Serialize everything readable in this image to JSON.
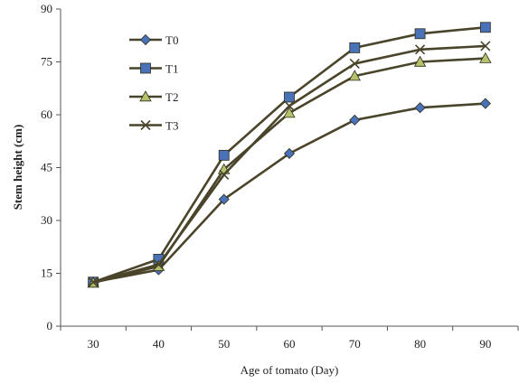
{
  "chart_data": {
    "type": "line",
    "title": "",
    "xlabel": "Age of tomato  (Day)",
    "ylabel": "Stem height (cm)",
    "x": [
      30,
      40,
      50,
      60,
      70,
      80,
      90
    ],
    "xlim": [
      25,
      95
    ],
    "ylim": [
      0,
      90
    ],
    "yticks": [
      0,
      15,
      30,
      45,
      60,
      75,
      90
    ],
    "xtick_labels": [
      "30",
      "40",
      "50",
      "60",
      "70",
      "80",
      "90"
    ],
    "ytick_labels": [
      "0",
      "15",
      "30",
      "45",
      "60",
      "75",
      "90"
    ],
    "grid": false,
    "legend_position": "top-left",
    "series": [
      {
        "name": "T0",
        "marker": "diamond",
        "color": "#4a72b8",
        "line_color": "#4a452a",
        "values": [
          12.5,
          16.0,
          36.0,
          49.0,
          58.5,
          62.0,
          63.2
        ]
      },
      {
        "name": "T1",
        "marker": "square",
        "color": "#4a72b8",
        "line_color": "#4a452a",
        "values": [
          12.5,
          19.0,
          48.5,
          65.0,
          79.0,
          83.0,
          84.8
        ]
      },
      {
        "name": "T2",
        "marker": "triangle",
        "color": "#b5c26b",
        "line_color": "#4a452a",
        "values": [
          12.3,
          17.0,
          44.5,
          60.5,
          71.0,
          75.0,
          76.0
        ]
      },
      {
        "name": "T3",
        "marker": "x",
        "color": "#4a452a",
        "line_color": "#4a452a",
        "values": [
          12.5,
          17.5,
          43.0,
          62.5,
          74.5,
          78.5,
          79.5
        ]
      }
    ]
  }
}
